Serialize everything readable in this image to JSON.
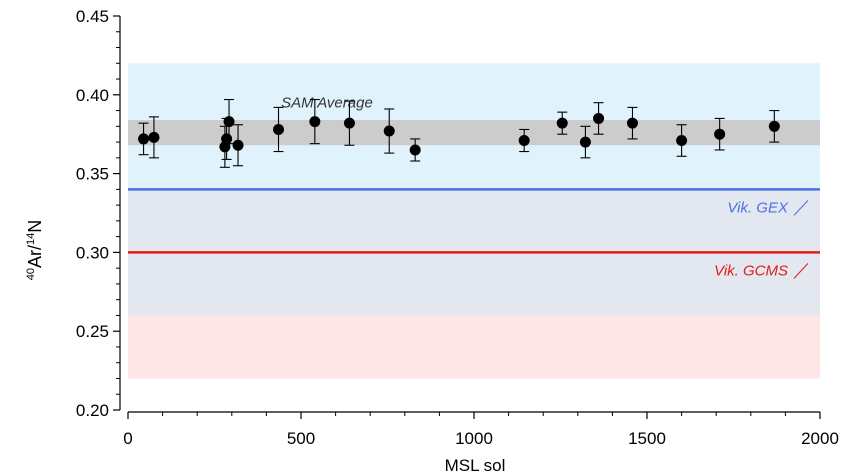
{
  "chart_data": {
    "type": "scatter",
    "xlabel": "MSL sol",
    "ylabel": {
      "sup1": "40",
      "base1": "Ar/",
      "sup2": "14",
      "base2": "N"
    },
    "xlim": [
      0,
      2000
    ],
    "ylim": [
      0.2,
      0.45
    ],
    "xticks": [
      0,
      500,
      1000,
      1500,
      2000
    ],
    "xtick_labels": [
      "0",
      "500",
      "1000",
      "1500",
      "2000"
    ],
    "yticks": [
      0.2,
      0.25,
      0.3,
      0.35,
      0.4,
      0.45
    ],
    "ytick_labels": [
      "0.20",
      "0.25",
      "0.30",
      "0.35",
      "0.40",
      "0.45"
    ],
    "grid": false,
    "bands": [
      {
        "y0": 0.26,
        "y1": 0.42,
        "color": "#e0f3fd"
      },
      {
        "y0": 0.26,
        "y1": 0.34,
        "color": "#e3e7ef"
      },
      {
        "y0": 0.22,
        "y1": 0.26,
        "color": "#fde6e6"
      },
      {
        "y0": 0.368,
        "y1": 0.384,
        "color": "#cccccc"
      }
    ],
    "reference_lines": [
      {
        "name": "Vik. GEX",
        "y": 0.34,
        "color": "#4a72e3"
      },
      {
        "name": "Vik. GCMS",
        "y": 0.3,
        "color": "#e31b1b"
      }
    ],
    "annotations": [
      {
        "text": "SAM Average",
        "x": 575,
        "y": 0.392,
        "color": "#333333"
      }
    ],
    "series": [
      {
        "points": [
          {
            "x": 45,
            "y": 0.372,
            "err": 0.01
          },
          {
            "x": 75,
            "y": 0.373,
            "err": 0.013
          },
          {
            "x": 280,
            "y": 0.367,
            "err": 0.013
          },
          {
            "x": 285,
            "y": 0.372,
            "err": 0.013
          },
          {
            "x": 292,
            "y": 0.383,
            "err": 0.014
          },
          {
            "x": 318,
            "y": 0.368,
            "err": 0.013
          },
          {
            "x": 435,
            "y": 0.378,
            "err": 0.014
          },
          {
            "x": 540,
            "y": 0.383,
            "err": 0.014
          },
          {
            "x": 640,
            "y": 0.382,
            "err": 0.014
          },
          {
            "x": 755,
            "y": 0.377,
            "err": 0.014
          },
          {
            "x": 830,
            "y": 0.365,
            "err": 0.007
          },
          {
            "x": 1145,
            "y": 0.371,
            "err": 0.007
          },
          {
            "x": 1255,
            "y": 0.382,
            "err": 0.007
          },
          {
            "x": 1322,
            "y": 0.37,
            "err": 0.01
          },
          {
            "x": 1360,
            "y": 0.385,
            "err": 0.01
          },
          {
            "x": 1458,
            "y": 0.382,
            "err": 0.01
          },
          {
            "x": 1600,
            "y": 0.371,
            "err": 0.01
          },
          {
            "x": 1710,
            "y": 0.375,
            "err": 0.01
          },
          {
            "x": 1868,
            "y": 0.38,
            "err": 0.01
          }
        ]
      }
    ]
  }
}
